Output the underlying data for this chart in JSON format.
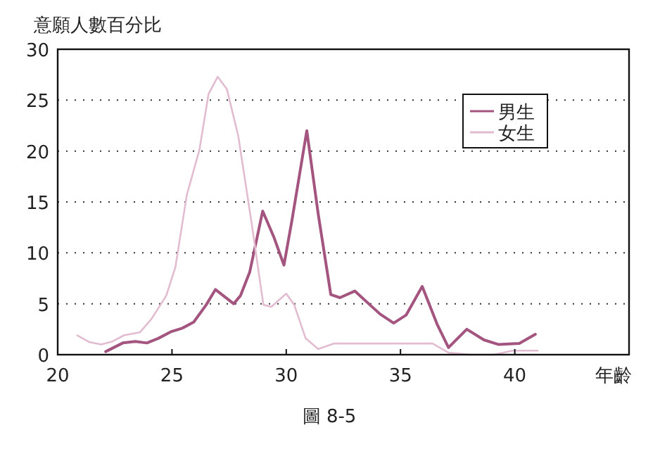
{
  "chart_data": {
    "type": "line",
    "ylabel": "意願人數百分比",
    "xlabel": "年齡",
    "annotations": [
      "圖 8-5"
    ],
    "xlim": [
      20,
      45
    ],
    "xticks": [
      20,
      25,
      30,
      35,
      40
    ],
    "ylim": [
      0,
      30
    ],
    "yticks": [
      0,
      5,
      10,
      15,
      20,
      25,
      30
    ],
    "grid": "y",
    "legend": "top right",
    "marker": "none",
    "line_style": "solid",
    "series": [
      {
        "name": "男生",
        "color": "#a3557f",
        "x": [
          22.1,
          22.85,
          23.4,
          23.9,
          24.4,
          24.95,
          25.45,
          25.95,
          26.5,
          26.9,
          27.7,
          28.0,
          28.4,
          28.97,
          29.45,
          29.9,
          30.25,
          30.9,
          31.4,
          31.95,
          32.35,
          33.0,
          34.1,
          34.7,
          35.25,
          35.95,
          36.6,
          37.1,
          37.9,
          38.65,
          39.3,
          40.2,
          40.9
        ],
        "values": [
          0.3,
          1.15,
          1.3,
          1.15,
          1.6,
          2.25,
          2.6,
          3.2,
          4.9,
          6.4,
          5.0,
          5.8,
          8.1,
          14.1,
          11.6,
          8.8,
          13.2,
          22,
          13.8,
          5.9,
          5.6,
          6.25,
          4.0,
          3.1,
          3.9,
          6.7,
          3.0,
          0.7,
          2.5,
          1.45,
          1.0,
          1.1,
          2.0
        ]
      },
      {
        "name": "女生",
        "color": "#e2bcd0",
        "x": [
          20.86,
          21.37,
          21.9,
          22.4,
          22.9,
          23.6,
          24.1,
          24.75,
          25.15,
          25.65,
          26.2,
          26.6,
          27.0,
          27.4,
          27.9,
          28.5,
          29.0,
          29.35,
          30.0,
          30.35,
          30.85,
          31.4,
          32.1,
          33.9,
          36.4,
          37.1,
          38.05,
          39.1,
          39.9,
          41.0
        ],
        "values": [
          1.9,
          1.25,
          1.0,
          1.3,
          1.9,
          2.2,
          3.5,
          5.8,
          8.6,
          15.7,
          20.1,
          25.6,
          27.3,
          26.1,
          21.5,
          12.7,
          4.9,
          4.7,
          6.0,
          4.9,
          1.6,
          0.55,
          1.1,
          1.1,
          1.1,
          0.2,
          0,
          0,
          0.4,
          0.4
        ]
      }
    ]
  }
}
